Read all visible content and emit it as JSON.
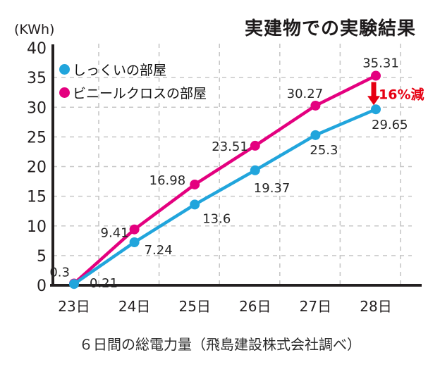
{
  "header": {
    "title": "実建物での実験結果"
  },
  "caption": "６日間の総電力量（飛島建設株式会社調べ）",
  "chart_data": {
    "type": "line",
    "title": "実建物での実験結果",
    "xlabel": "",
    "ylabel": "(KWh)",
    "categories": [
      "23日",
      "24日",
      "25日",
      "26日",
      "27日",
      "28日"
    ],
    "ylim": [
      0,
      40
    ],
    "ytick_step": 5,
    "grid": true,
    "legend_position": "top-left",
    "series": [
      {
        "name": "しっくいの部屋",
        "color": "#21a5dc",
        "values": [
          0.21,
          7.24,
          13.6,
          19.37,
          25.3,
          29.65
        ]
      },
      {
        "name": "ビニールクロスの部屋",
        "color": "#e4007f",
        "values": [
          0.3,
          9.41,
          16.98,
          23.51,
          30.27,
          35.31
        ]
      }
    ],
    "label_offsets": [
      [
        [
          22,
          5,
          "start"
        ],
        [
          14,
          17,
          "start"
        ],
        [
          11,
          26,
          "start"
        ],
        [
          -2,
          31,
          "start"
        ],
        [
          -8,
          27,
          "start"
        ],
        [
          -6,
          28,
          "start"
        ]
      ],
      [
        [
          -6,
          -10,
          "end"
        ],
        [
          -8,
          11,
          "end"
        ],
        [
          -13,
          0,
          "end"
        ],
        [
          -10,
          7,
          "end"
        ],
        [
          -15,
          -11,
          "middle"
        ],
        [
          7,
          -12,
          "middle"
        ]
      ]
    ],
    "annotation": {
      "text": "16%減",
      "color": "#e60012",
      "category_index": 5,
      "from_value": 35.31,
      "to_value": 29.65
    }
  },
  "colors": {
    "axis": "#231f20",
    "grid": "#c7c7c7",
    "text": "#231f20"
  }
}
